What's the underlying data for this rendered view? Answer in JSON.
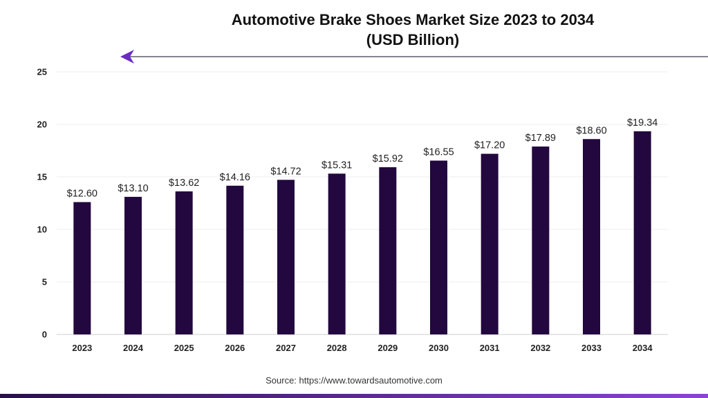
{
  "title_line1": "Automotive Brake Shoes Market Size 2023 to 2034",
  "title_line2": "(USD Billion)",
  "source": "Source: https://www.towardsautomotive.com",
  "colors": {
    "bar": "#22083f",
    "arrow": "#6a2dc4",
    "title": "#111111"
  },
  "chart_data": {
    "type": "bar",
    "title": "Automotive Brake Shoes Market Size 2023 to 2034 (USD Billion)",
    "xlabel": "",
    "ylabel": "",
    "categories": [
      "2023",
      "2024",
      "2025",
      "2026",
      "2027",
      "2028",
      "2029",
      "2030",
      "2031",
      "2032",
      "2033",
      "2034"
    ],
    "values": [
      12.6,
      13.1,
      13.62,
      14.16,
      14.72,
      15.31,
      15.92,
      16.55,
      17.2,
      17.89,
      18.6,
      19.34
    ],
    "data_labels": [
      "$12.60",
      "$13.10",
      "$13.62",
      "$14.16",
      "$14.72",
      "$15.31",
      "$15.92",
      "$16.55",
      "$17.20",
      "$17.89",
      "$18.60",
      "$19.34"
    ],
    "yticks": [
      0,
      5,
      10,
      15,
      20,
      25
    ],
    "ylim": [
      0,
      25
    ],
    "grid": true,
    "legend": "none"
  }
}
